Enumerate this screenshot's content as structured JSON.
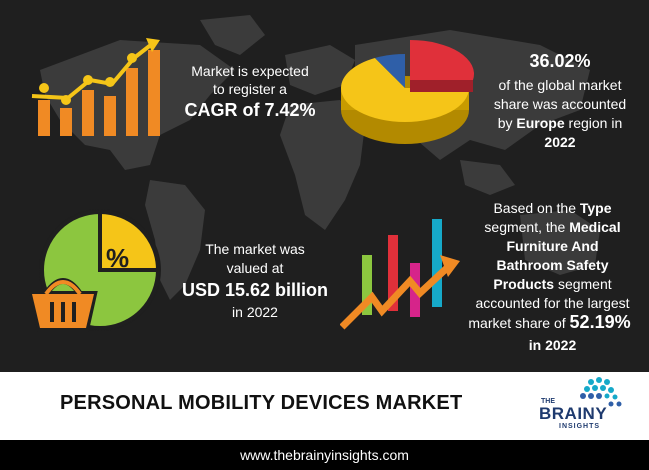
{
  "cagr": {
    "line1": "Market is expected",
    "line2": "to register a",
    "value": "CAGR of 7.42%"
  },
  "europe": {
    "value": "36.02%",
    "line1": "of the global market",
    "line2": "share was accounted",
    "line3_prefix": "by",
    "region": "Europe",
    "line3_suffix": "region in",
    "year": "2022"
  },
  "market_value": {
    "line1": "The market was",
    "line2": "valued at",
    "value": "USD 15.62 billion",
    "line3": "in 2022"
  },
  "segment": {
    "line1_prefix": "Based on the",
    "type_word": "Type",
    "line2_prefix": "segment, the",
    "medical_word": "Medical",
    "line3": "Furniture And",
    "line4": "Bathroom Safety",
    "products_word": "Products",
    "line5_suffix": "segment",
    "line6": "accounted for the largest",
    "line7_prefix": "market share of",
    "share": "52.19%",
    "year": "in 2022"
  },
  "percent_symbol": "%",
  "title": "PERSONAL MOBILITY DEVICES MARKET",
  "logo": {
    "the": "THE",
    "brainy": "BRAINY",
    "insights": "INSIGHTS"
  },
  "footer": "www.thebrainyinsights.com",
  "icons": [
    "growth-bar-chart-icon",
    "pie-3d-icon",
    "basket-pie-icon",
    "rising-arrow-bars-icon",
    "world-map"
  ],
  "colors": {
    "orange": "#f08a24",
    "yellow": "#f5c518",
    "red": "#e0303a",
    "blue": "#2f5fa8",
    "green": "#8cc63f",
    "magenta": "#d6248a",
    "teal": "#16a9c9",
    "background": "#1f1f1f"
  }
}
